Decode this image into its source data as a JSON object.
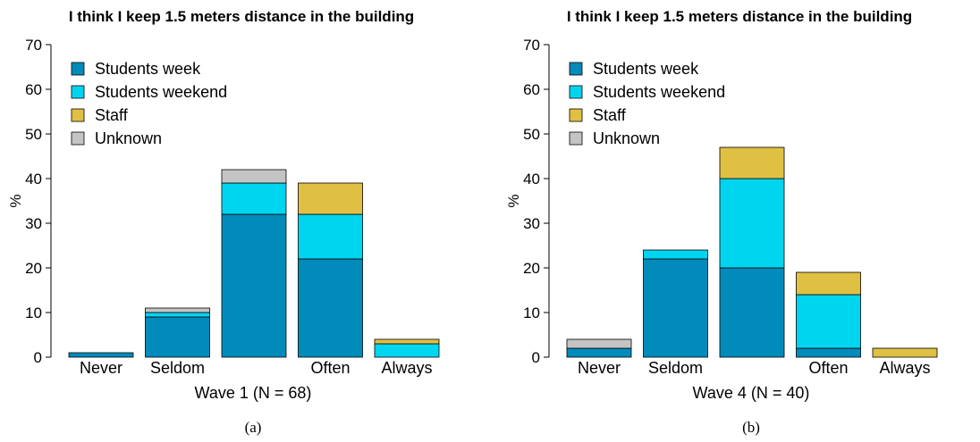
{
  "chart_data": [
    {
      "type": "stacked-bar",
      "title": "I think I keep 1.5 meters distance in the building",
      "ylabel": "%",
      "xlabel": "Wave 1 (N = 68)",
      "caption": "(a)",
      "categories": [
        "Never",
        "Seldom",
        null,
        "Often",
        "Always"
      ],
      "series": [
        {
          "name": "Students week",
          "color": "#008bbb",
          "values": [
            1,
            9,
            32,
            22,
            0
          ]
        },
        {
          "name": "Students weekend",
          "color": "#00d5f0",
          "values": [
            0,
            1,
            7,
            10,
            3
          ]
        },
        {
          "name": "Staff",
          "color": "#e0c043",
          "values": [
            0,
            0,
            0,
            7,
            1
          ]
        },
        {
          "name": "Unknown",
          "color": "#c4c4c4",
          "values": [
            0,
            1,
            3,
            0,
            0
          ]
        }
      ],
      "ylim": [
        0,
        70
      ],
      "yticks": [
        0,
        10,
        20,
        30,
        40,
        50,
        60,
        70
      ],
      "legend": "top-left"
    },
    {
      "type": "stacked-bar",
      "title": "I think I keep 1.5 meters distance in the building",
      "ylabel": "%",
      "xlabel": "Wave 4 (N = 40)",
      "caption": "(b)",
      "categories": [
        "Never",
        "Seldom",
        null,
        "Often",
        "Always"
      ],
      "series": [
        {
          "name": "Students week",
          "color": "#008bbb",
          "values": [
            2,
            22,
            20,
            2,
            0
          ]
        },
        {
          "name": "Students weekend",
          "color": "#00d5f0",
          "values": [
            0,
            2,
            20,
            12,
            0
          ]
        },
        {
          "name": "Staff",
          "color": "#e0c043",
          "values": [
            0,
            0,
            7,
            5,
            2
          ]
        },
        {
          "name": "Unknown",
          "color": "#c4c4c4",
          "values": [
            2,
            0,
            0,
            0,
            0
          ]
        }
      ],
      "ylim": [
        0,
        70
      ],
      "yticks": [
        0,
        10,
        20,
        30,
        40,
        50,
        60,
        70
      ],
      "legend": "top-left"
    }
  ]
}
